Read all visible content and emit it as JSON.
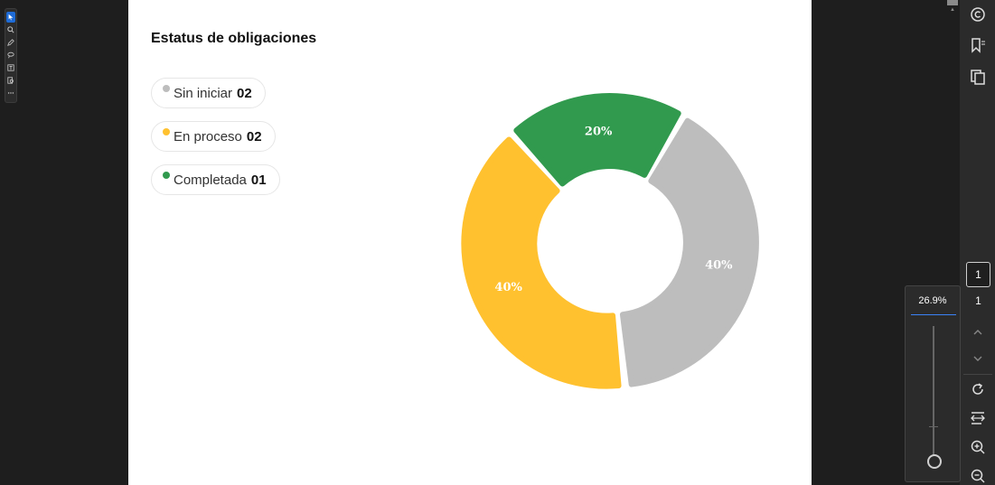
{
  "document": {
    "title": "Estatus de obligaciones",
    "legend": [
      {
        "label": "Sin iniciar",
        "count": "02",
        "color": "#bdbdbd"
      },
      {
        "label": "En proceso",
        "count": "02",
        "color": "#ffc12f"
      },
      {
        "label": "Completada",
        "count": "01",
        "color": "#319a4e"
      }
    ]
  },
  "chart_data": {
    "type": "pie",
    "categories": [
      "Sin iniciar",
      "En proceso",
      "Completada"
    ],
    "values": [
      40,
      40,
      20
    ],
    "data_labels": [
      "40%",
      "40%",
      "20%"
    ],
    "colors": [
      "#bdbdbd",
      "#ffc12f",
      "#319a4e"
    ],
    "donut": true
  },
  "viewer": {
    "current_page": "1",
    "total_pages": "1",
    "zoom": "26.9%",
    "zoom_level": 0.04
  },
  "icons": {
    "left_toolbar": [
      "select-icon",
      "zoom-icon",
      "pen-icon",
      "lasso-icon",
      "text-box-icon",
      "search-page-icon",
      "more-icon"
    ],
    "right_panel": [
      "ai-assistant-icon",
      "bookmark-icon",
      "copy-pages-icon",
      "rotate-icon",
      "fit-width-icon",
      "zoom-in-icon",
      "zoom-out-icon"
    ]
  }
}
